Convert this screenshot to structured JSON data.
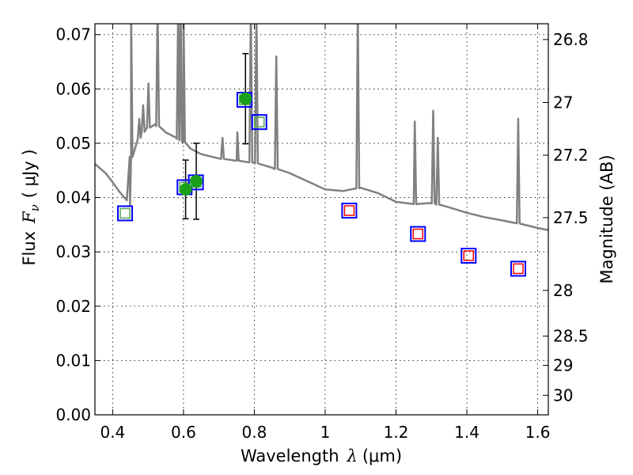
{
  "chart_data": {
    "type": "scatter",
    "xlabel_prefix": "Wavelength",
    "xlabel_symbol": "λ",
    "xlabel_unit": "(μm)",
    "ylabel_prefix": "Flux",
    "ylabel_symbol": "F",
    "ylabel_subscript": "ν",
    "ylabel_unit": "( μJy )",
    "y2label": "Magnitude (AB)",
    "xlim": [
      0.35,
      1.63
    ],
    "ylim": [
      0.0,
      0.072
    ],
    "grid": true,
    "x_ticks": [
      0.4,
      0.6,
      0.8,
      1.0,
      1.2,
      1.4,
      1.6
    ],
    "x_tick_labels": [
      "0.4",
      "0.6",
      "0.8",
      "1",
      "1.2",
      "1.4",
      "1.6"
    ],
    "y_ticks": [
      0.0,
      0.01,
      0.02,
      0.03,
      0.04,
      0.05,
      0.06,
      0.07
    ],
    "y_tick_labels": [
      "0.00",
      "0.01",
      "0.02",
      "0.03",
      "0.04",
      "0.05",
      "0.06",
      "0.07"
    ],
    "y2_ticks": [
      {
        "label": "26.8",
        "flux": 0.0691
      },
      {
        "label": "27",
        "flux": 0.0575
      },
      {
        "label": "27.2",
        "flux": 0.0478
      },
      {
        "label": "27.5",
        "flux": 0.0363
      },
      {
        "label": "28",
        "flux": 0.0229
      },
      {
        "label": "28.5",
        "flux": 0.0145
      },
      {
        "label": "29",
        "flux": 0.0091
      },
      {
        "label": "30",
        "flux": 0.0036
      }
    ],
    "colors": {
      "spectrum": "#808080",
      "observed_marker": "#1aa01a",
      "box_outline": "#0000ff",
      "model_marker_red": "#ff0000",
      "model_marker_green": "#55aa55",
      "error_bar": "#000000"
    },
    "spectrum": {
      "name": "",
      "continuum": [
        [
          0.35,
          0.0462
        ],
        [
          0.38,
          0.0445
        ],
        [
          0.4,
          0.0428
        ],
        [
          0.42,
          0.041
        ],
        [
          0.44,
          0.0395
        ],
        [
          0.449,
          0.0386
        ],
        [
          0.452,
          0.0475
        ],
        [
          0.47,
          0.0505
        ],
        [
          0.49,
          0.0525
        ],
        [
          0.52,
          0.0535
        ],
        [
          0.55,
          0.052
        ],
        [
          0.58,
          0.051
        ],
        [
          0.6,
          0.0502
        ],
        [
          0.62,
          0.049
        ],
        [
          0.65,
          0.048
        ],
        [
          0.7,
          0.0472
        ],
        [
          0.75,
          0.0468
        ],
        [
          0.8,
          0.0464
        ],
        [
          0.85,
          0.0455
        ],
        [
          0.9,
          0.0445
        ],
        [
          0.95,
          0.043
        ],
        [
          1.0,
          0.0415
        ],
        [
          1.05,
          0.0412
        ],
        [
          1.1,
          0.0418
        ],
        [
          1.15,
          0.0408
        ],
        [
          1.2,
          0.0392
        ],
        [
          1.25,
          0.0388
        ],
        [
          1.3,
          0.039
        ],
        [
          1.35,
          0.0382
        ],
        [
          1.4,
          0.0372
        ],
        [
          1.45,
          0.0364
        ],
        [
          1.5,
          0.0358
        ],
        [
          1.55,
          0.0352
        ],
        [
          1.6,
          0.0344
        ],
        [
          1.63,
          0.034
        ]
      ],
      "emission_lines": [
        {
          "x": 0.452,
          "peak": 0.075
        },
        {
          "x": 0.475,
          "peak": 0.0545
        },
        {
          "x": 0.486,
          "peak": 0.057
        },
        {
          "x": 0.501,
          "peak": 0.061
        },
        {
          "x": 0.527,
          "peak": 0.075
        },
        {
          "x": 0.585,
          "peak": 0.075
        },
        {
          "x": 0.592,
          "peak": 0.075
        },
        {
          "x": 0.6,
          "peak": 0.075
        },
        {
          "x": 0.71,
          "peak": 0.051
        },
        {
          "x": 0.752,
          "peak": 0.052
        },
        {
          "x": 0.79,
          "peak": 0.075
        },
        {
          "x": 0.806,
          "peak": 0.075
        },
        {
          "x": 0.862,
          "peak": 0.066
        },
        {
          "x": 1.092,
          "peak": 0.075
        },
        {
          "x": 1.253,
          "peak": 0.054
        },
        {
          "x": 1.305,
          "peak": 0.056
        },
        {
          "x": 1.318,
          "peak": 0.051
        },
        {
          "x": 1.545,
          "peak": 0.0545
        }
      ]
    },
    "observed": [
      {
        "x": 0.606,
        "y": 0.0415,
        "err": 0.0054
      },
      {
        "x": 0.636,
        "y": 0.043,
        "err": 0.007
      },
      {
        "x": 0.775,
        "y": 0.0582,
        "err": 0.0083
      }
    ],
    "model_boxes": [
      {
        "x": 0.435,
        "y": 0.0371,
        "inner": "green"
      },
      {
        "x": 0.603,
        "y": 0.0419,
        "inner": "green"
      },
      {
        "x": 0.635,
        "y": 0.0428,
        "inner": "green"
      },
      {
        "x": 0.772,
        "y": 0.058,
        "inner": "green"
      },
      {
        "x": 0.814,
        "y": 0.0539,
        "inner": "green"
      },
      {
        "x": 1.068,
        "y": 0.0376,
        "inner": "red"
      },
      {
        "x": 1.262,
        "y": 0.0333,
        "inner": "red"
      },
      {
        "x": 1.405,
        "y": 0.0293,
        "inner": "red"
      },
      {
        "x": 1.545,
        "y": 0.0269,
        "inner": "red"
      }
    ]
  }
}
